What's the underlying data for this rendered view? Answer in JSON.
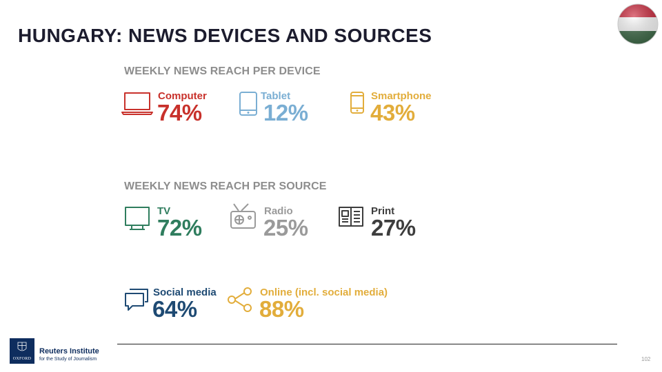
{
  "slide": {
    "title": "HUNGARY: NEWS DEVICES AND SOURCES",
    "page_number": "102"
  },
  "devices": {
    "heading": "WEEKLY NEWS REACH PER DEVICE",
    "items": [
      {
        "label": "Computer",
        "value": "74%",
        "color": "#c8312b",
        "icon": "laptop-icon"
      },
      {
        "label": "Tablet",
        "value": "12%",
        "color": "#7aaed3",
        "icon": "tablet-icon"
      },
      {
        "label": "Smartphone",
        "value": "43%",
        "color": "#e2ad3b",
        "icon": "smartphone-icon"
      }
    ]
  },
  "sources": {
    "heading": "WEEKLY NEWS REACH PER SOURCE",
    "items": [
      {
        "label": "TV",
        "value": "72%",
        "color": "#2f7d5e",
        "icon": "tv-icon"
      },
      {
        "label": "Radio",
        "value": "25%",
        "color": "#9a9a9a",
        "icon": "radio-icon"
      },
      {
        "label": "Print",
        "value": "27%",
        "color": "#3d3d3d",
        "icon": "newspaper-icon"
      },
      {
        "label": "Social media",
        "value": "64%",
        "color": "#1e4a73",
        "icon": "chat-bubbles-icon"
      },
      {
        "label": "Online (incl. social media)",
        "value": "88%",
        "color": "#e2ad3b",
        "icon": "share-icon"
      }
    ]
  },
  "footer": {
    "logo_mark": "OXFORD",
    "org_name": "Reuters Institute",
    "org_subtitle": "for the Study of Journalism"
  },
  "flag_colors": {
    "top": "#cd2a3e",
    "middle": "#ffffff",
    "bottom": "#436f4d"
  }
}
